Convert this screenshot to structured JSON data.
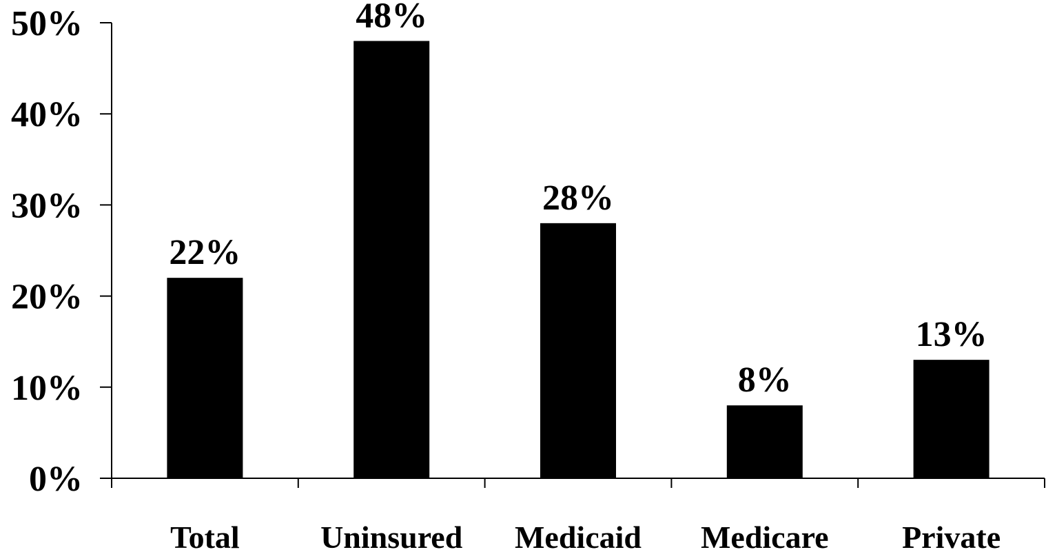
{
  "chart_data": {
    "type": "bar",
    "categories": [
      "Total",
      "Uninsured",
      "Medicaid",
      "Medicare",
      "Private"
    ],
    "values": [
      22,
      48,
      28,
      8,
      13
    ],
    "data_labels": [
      "22%",
      "48%",
      "28%",
      "8%",
      "13%"
    ],
    "y_ticks": [
      0,
      10,
      20,
      30,
      40,
      50
    ],
    "y_tick_labels": [
      "0%",
      "10%",
      "20%",
      "30%",
      "40%",
      "50%"
    ],
    "ylim": [
      0,
      50
    ],
    "title": "",
    "xlabel": "",
    "ylabel": "",
    "grid": false,
    "bar_color": "#000000"
  }
}
